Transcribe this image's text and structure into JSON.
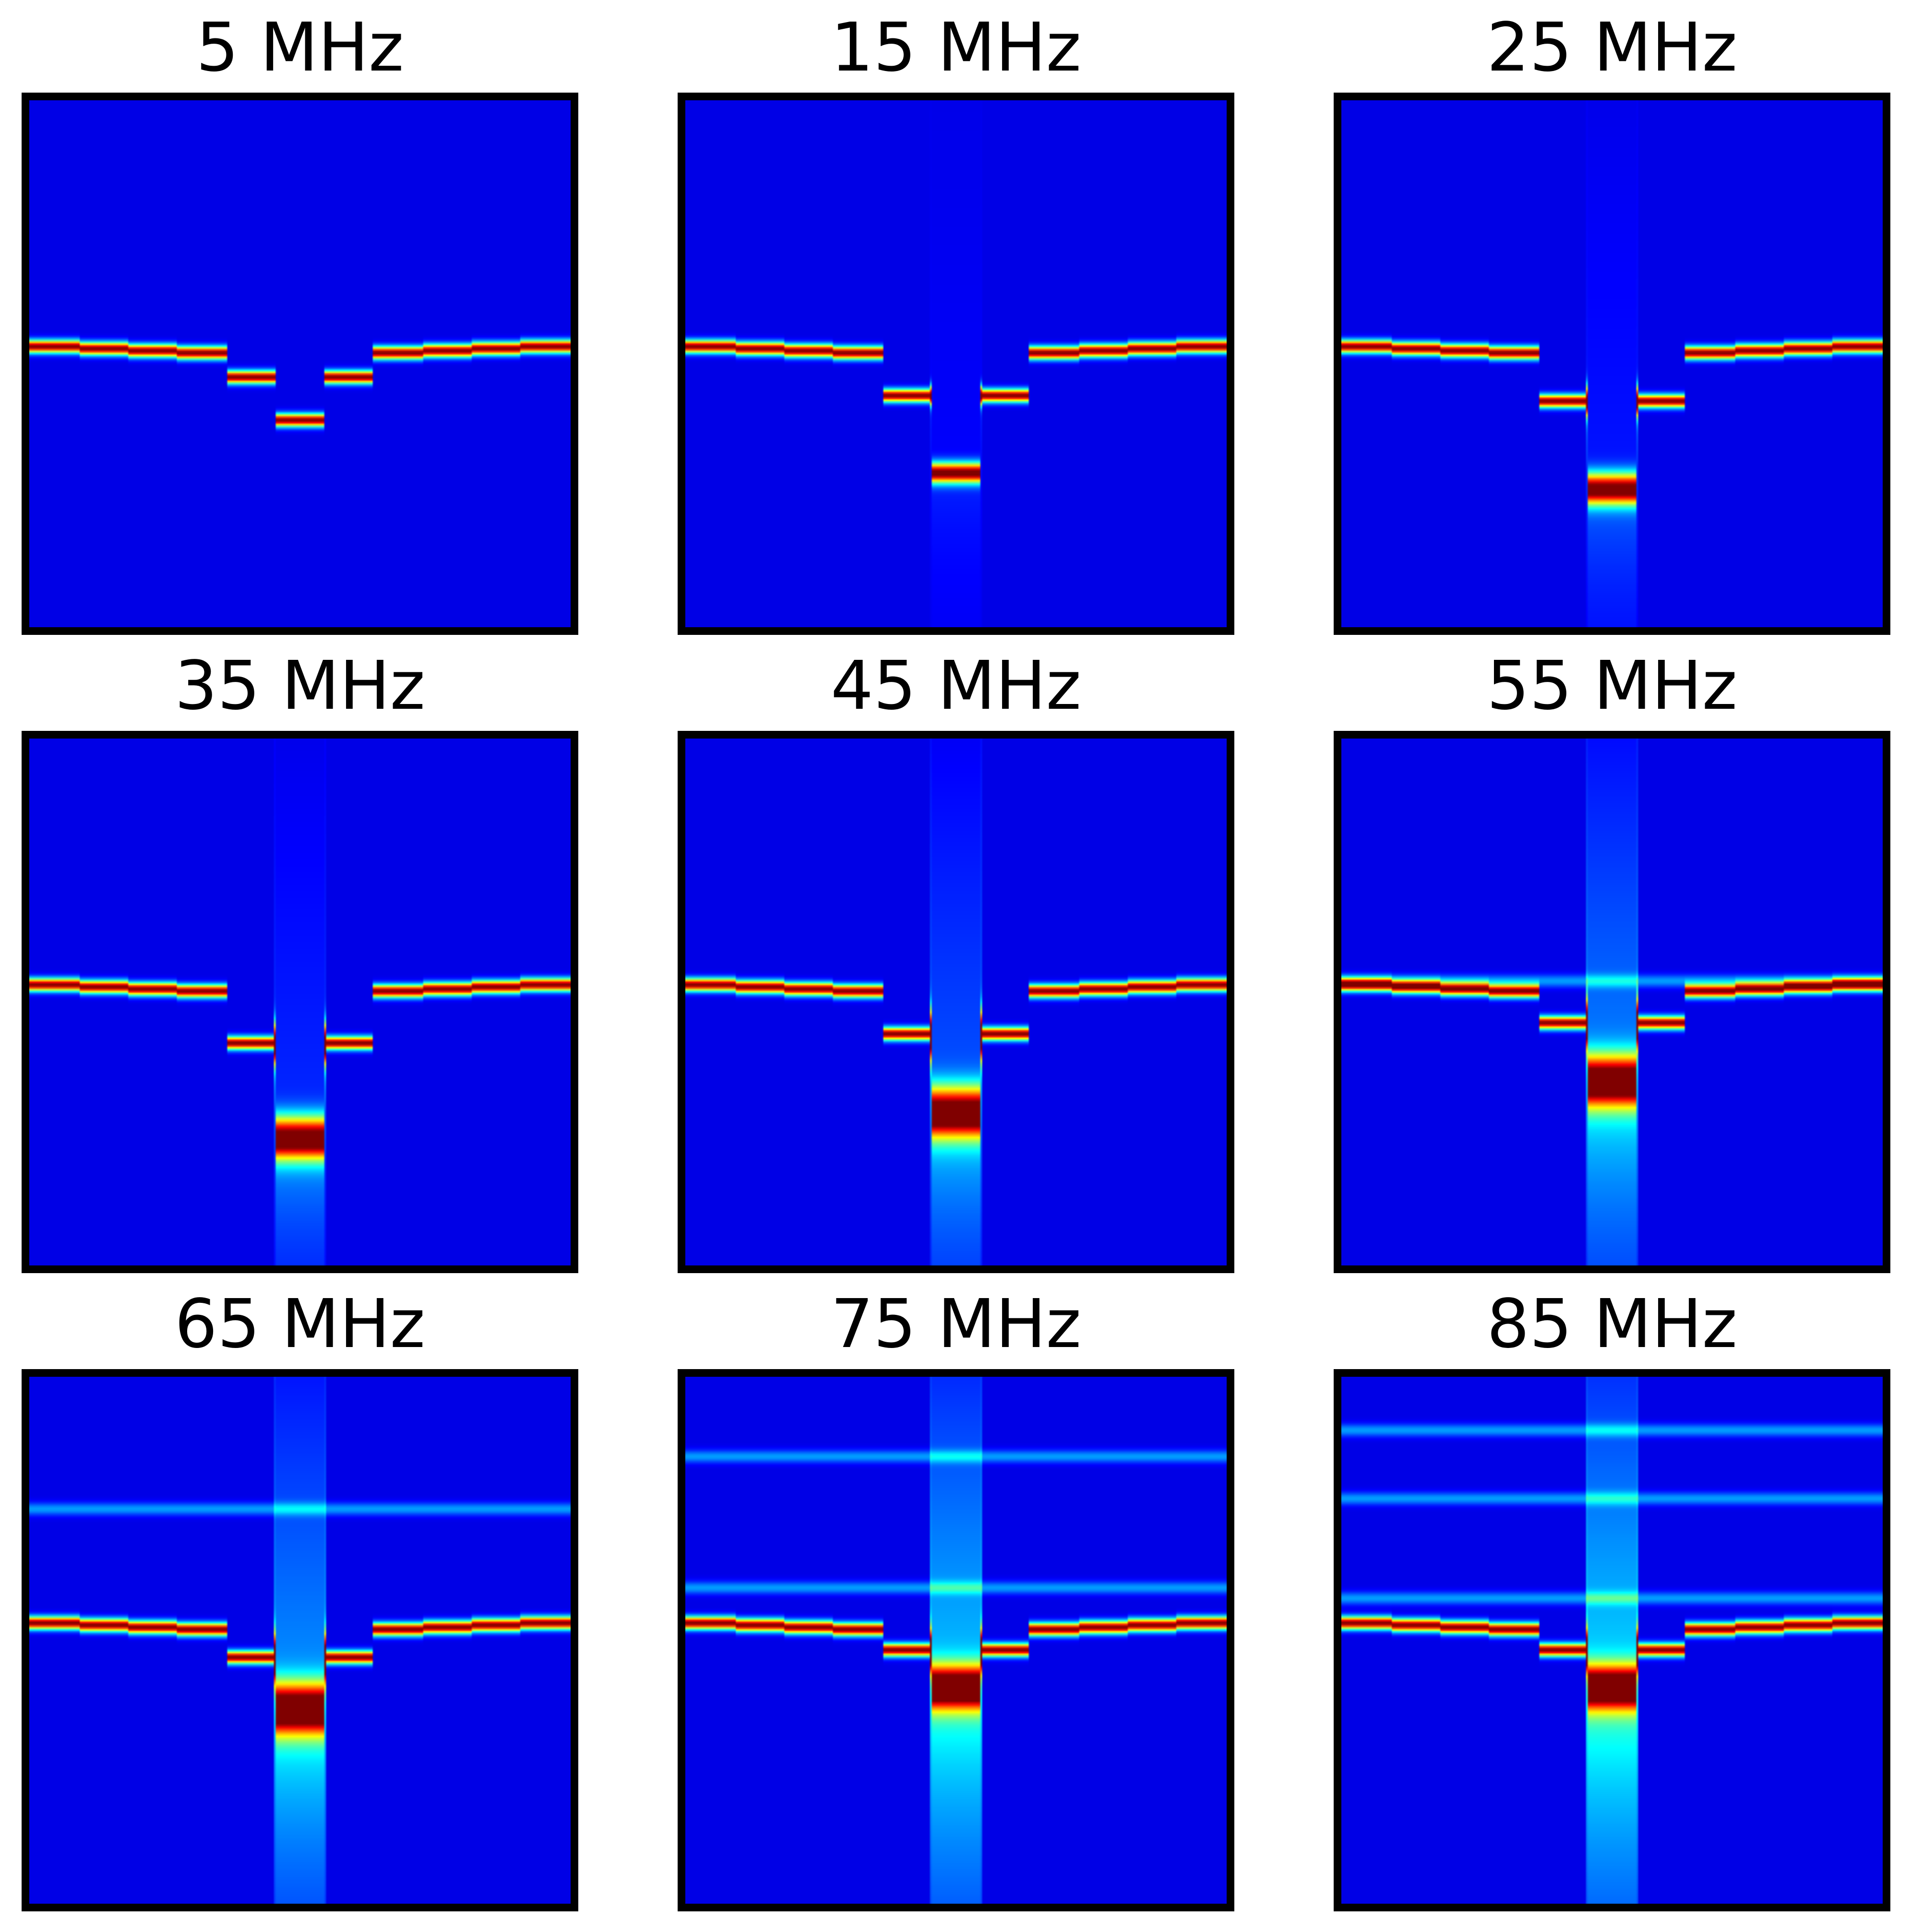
{
  "figure": {
    "panels": [
      {
        "title": "5 MHz"
      },
      {
        "title": "15 MHz"
      },
      {
        "title": "25 MHz"
      },
      {
        "title": "35 MHz"
      },
      {
        "title": "45 MHz"
      },
      {
        "title": "55 MHz"
      },
      {
        "title": "65 MHz"
      },
      {
        "title": "75 MHz"
      },
      {
        "title": "85 MHz"
      }
    ]
  },
  "chart_data": [
    {
      "type": "heatmap",
      "title": "5 MHz",
      "colormap": "jet",
      "frequency_mhz": 5,
      "axes_ticks": "none",
      "dip_depth": 0.12,
      "dip_width": 0.1,
      "dip_spread": 0.0,
      "halo": 0.0,
      "harmonics": []
    },
    {
      "type": "heatmap",
      "title": "15 MHz",
      "colormap": "jet",
      "frequency_mhz": 15,
      "axes_ticks": "none",
      "dip_depth": 0.22,
      "dip_width": 0.1,
      "dip_spread": 0.02,
      "halo": 0.05,
      "harmonics": []
    },
    {
      "type": "heatmap",
      "title": "25 MHz",
      "colormap": "jet",
      "frequency_mhz": 25,
      "axes_ticks": "none",
      "dip_depth": 0.25,
      "dip_width": 0.1,
      "dip_spread": 0.05,
      "halo": 0.1,
      "harmonics": []
    },
    {
      "type": "heatmap",
      "title": "35 MHz",
      "colormap": "jet",
      "frequency_mhz": 35,
      "axes_ticks": "none",
      "dip_depth": 0.27,
      "dip_width": 0.1,
      "dip_spread": 0.08,
      "halo": 0.15,
      "harmonics": []
    },
    {
      "type": "heatmap",
      "title": "45 MHz",
      "colormap": "jet",
      "frequency_mhz": 45,
      "axes_ticks": "none",
      "dip_depth": 0.22,
      "dip_width": 0.1,
      "dip_spread": 0.1,
      "halo": 0.25,
      "harmonics": []
    },
    {
      "type": "heatmap",
      "title": "55 MHz",
      "colormap": "jet",
      "frequency_mhz": 55,
      "axes_ticks": "none",
      "dip_depth": 0.16,
      "dip_width": 0.1,
      "dip_spread": 0.1,
      "halo": 0.35,
      "harmonics": [
        0.46
      ]
    },
    {
      "type": "heatmap",
      "title": "65 MHz",
      "colormap": "jet",
      "frequency_mhz": 65,
      "axes_ticks": "none",
      "dip_depth": 0.14,
      "dip_width": 0.1,
      "dip_spread": 0.1,
      "halo": 0.4,
      "harmonics": [
        0.25
      ]
    },
    {
      "type": "heatmap",
      "title": "75 MHz",
      "colormap": "jet",
      "frequency_mhz": 75,
      "axes_ticks": "none",
      "dip_depth": 0.1,
      "dip_width": 0.1,
      "dip_spread": 0.08,
      "halo": 0.5,
      "harmonics": [
        0.15,
        0.4
      ]
    },
    {
      "type": "heatmap",
      "title": "85 MHz",
      "colormap": "jet",
      "frequency_mhz": 85,
      "axes_ticks": "none",
      "dip_depth": 0.1,
      "dip_width": 0.1,
      "dip_spread": 0.08,
      "halo": 0.55,
      "harmonics": [
        0.1,
        0.23,
        0.42
      ]
    }
  ]
}
